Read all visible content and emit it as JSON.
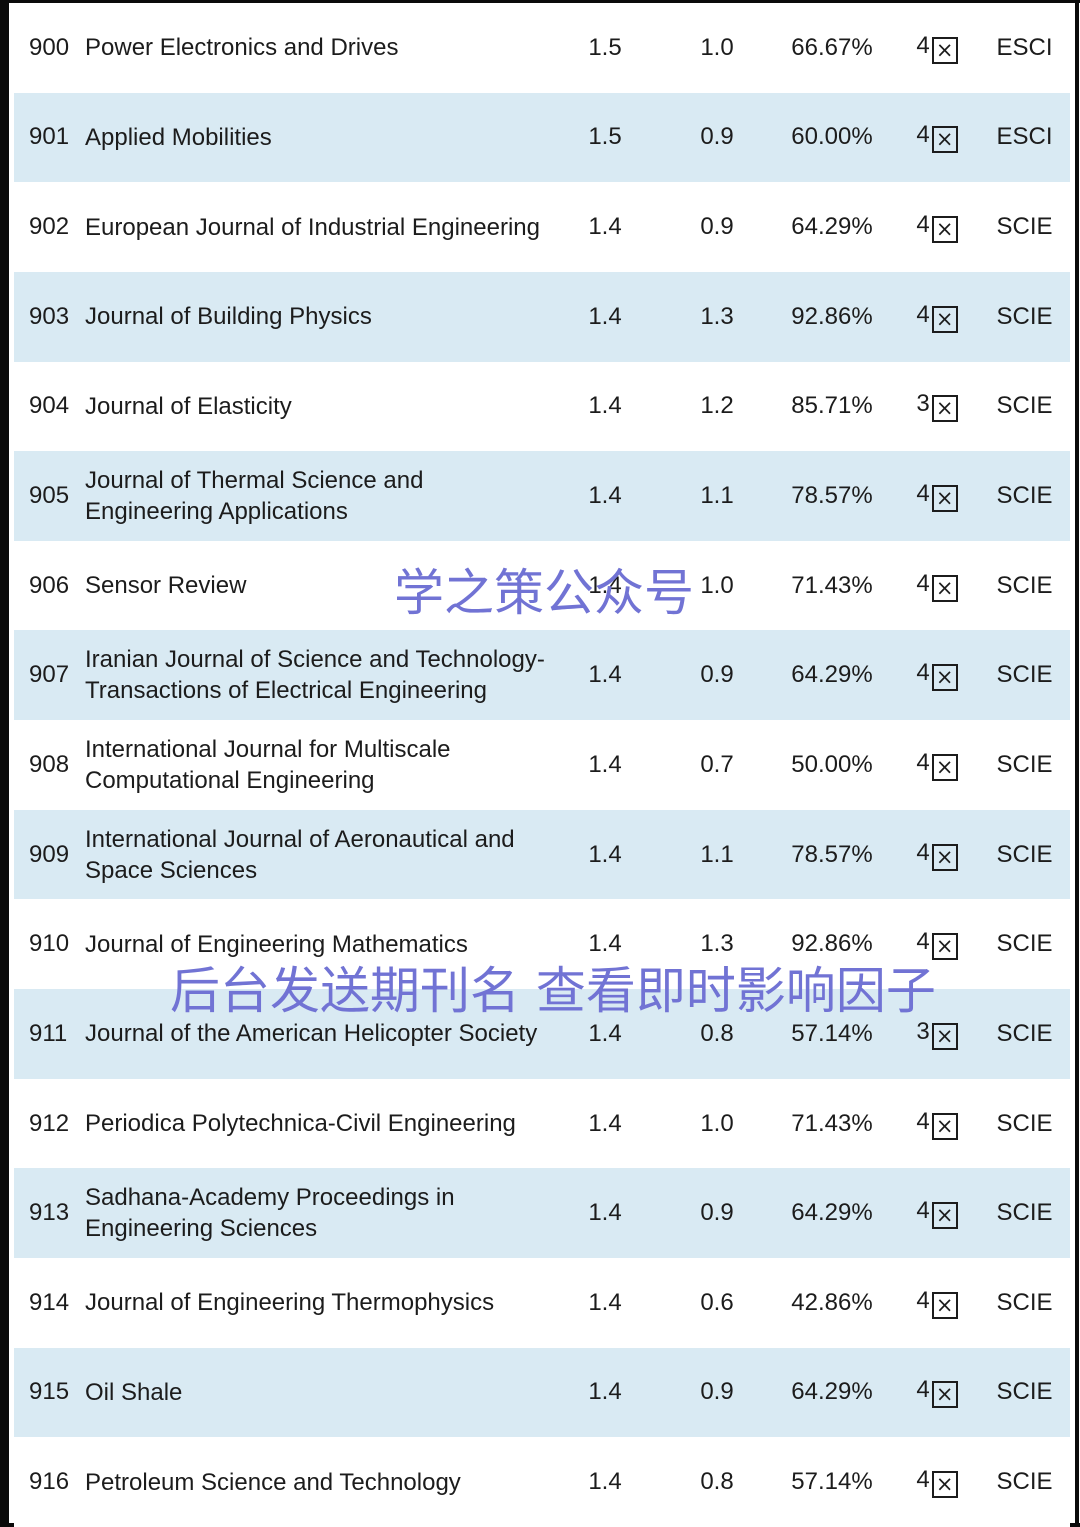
{
  "colors": {
    "row_alternate_background": "#d9eaf3",
    "row_background": "#ffffff",
    "text": "#1c1c1c",
    "watermark_text": "#7173d4",
    "frame_border": "#0a0a0a"
  },
  "icons": {
    "zone_box_glyph": "×"
  },
  "watermarks": {
    "wm1": "学之策公众号",
    "wm2": "后台发送期刊名 查看即时影响因子"
  },
  "table": {
    "rows": [
      {
        "rank": "900",
        "name": "Power Electronics and Drives",
        "if1": "1.5",
        "if2": "1.0",
        "percent": "66.67%",
        "zone": "4区",
        "zone_number": "4",
        "index": "ESCI"
      },
      {
        "rank": "901",
        "name": "Applied Mobilities",
        "if1": "1.5",
        "if2": "0.9",
        "percent": "60.00%",
        "zone": "4区",
        "zone_number": "4",
        "index": "ESCI"
      },
      {
        "rank": "902",
        "name": "European Journal of Industrial Engineering",
        "if1": "1.4",
        "if2": "0.9",
        "percent": "64.29%",
        "zone": "4区",
        "zone_number": "4",
        "index": "SCIE"
      },
      {
        "rank": "903",
        "name": "Journal of Building Physics",
        "if1": "1.4",
        "if2": "1.3",
        "percent": "92.86%",
        "zone": "4区",
        "zone_number": "4",
        "index": "SCIE"
      },
      {
        "rank": "904",
        "name": "Journal of Elasticity",
        "if1": "1.4",
        "if2": "1.2",
        "percent": "85.71%",
        "zone": "3区",
        "zone_number": "3",
        "index": "SCIE"
      },
      {
        "rank": "905",
        "name": "Journal of Thermal Science and Engineering Applications",
        "if1": "1.4",
        "if2": "1.1",
        "percent": "78.57%",
        "zone": "4区",
        "zone_number": "4",
        "index": "SCIE"
      },
      {
        "rank": "906",
        "name": "Sensor Review",
        "if1": "1.4",
        "if2": "1.0",
        "percent": "71.43%",
        "zone": "4区",
        "zone_number": "4",
        "index": "SCIE"
      },
      {
        "rank": "907",
        "name": "Iranian Journal of Science and Technology-Transactions of Electrical Engineering",
        "if1": "1.4",
        "if2": "0.9",
        "percent": "64.29%",
        "zone": "4区",
        "zone_number": "4",
        "index": "SCIE"
      },
      {
        "rank": "908",
        "name": "International Journal for Multiscale Computational Engineering",
        "if1": "1.4",
        "if2": "0.7",
        "percent": "50.00%",
        "zone": "4区",
        "zone_number": "4",
        "index": "SCIE"
      },
      {
        "rank": "909",
        "name": "International Journal of Aeronautical and Space Sciences",
        "if1": "1.4",
        "if2": "1.1",
        "percent": "78.57%",
        "zone": "4区",
        "zone_number": "4",
        "index": "SCIE"
      },
      {
        "rank": "910",
        "name": "Journal of Engineering Mathematics",
        "if1": "1.4",
        "if2": "1.3",
        "percent": "92.86%",
        "zone": "4区",
        "zone_number": "4",
        "index": "SCIE"
      },
      {
        "rank": "911",
        "name": "Journal of the American Helicopter Society",
        "if1": "1.4",
        "if2": "0.8",
        "percent": "57.14%",
        "zone": "3区",
        "zone_number": "3",
        "index": "SCIE"
      },
      {
        "rank": "912",
        "name": "Periodica Polytechnica-Civil Engineering",
        "if1": "1.4",
        "if2": "1.0",
        "percent": "71.43%",
        "zone": "4区",
        "zone_number": "4",
        "index": "SCIE"
      },
      {
        "rank": "913",
        "name": "Sadhana-Academy Proceedings in Engineering Sciences",
        "if1": "1.4",
        "if2": "0.9",
        "percent": "64.29%",
        "zone": "4区",
        "zone_number": "4",
        "index": "SCIE"
      },
      {
        "rank": "914",
        "name": "Journal of Engineering Thermophysics",
        "if1": "1.4",
        "if2": "0.6",
        "percent": "42.86%",
        "zone": "4区",
        "zone_number": "4",
        "index": "SCIE"
      },
      {
        "rank": "915",
        "name": "Oil Shale",
        "if1": "1.4",
        "if2": "0.9",
        "percent": "64.29%",
        "zone": "4区",
        "zone_number": "4",
        "index": "SCIE"
      },
      {
        "rank": "916",
        "name": "Petroleum Science and Technology",
        "if1": "1.4",
        "if2": "0.8",
        "percent": "57.14%",
        "zone": "4区",
        "zone_number": "4",
        "index": "SCIE"
      }
    ]
  }
}
